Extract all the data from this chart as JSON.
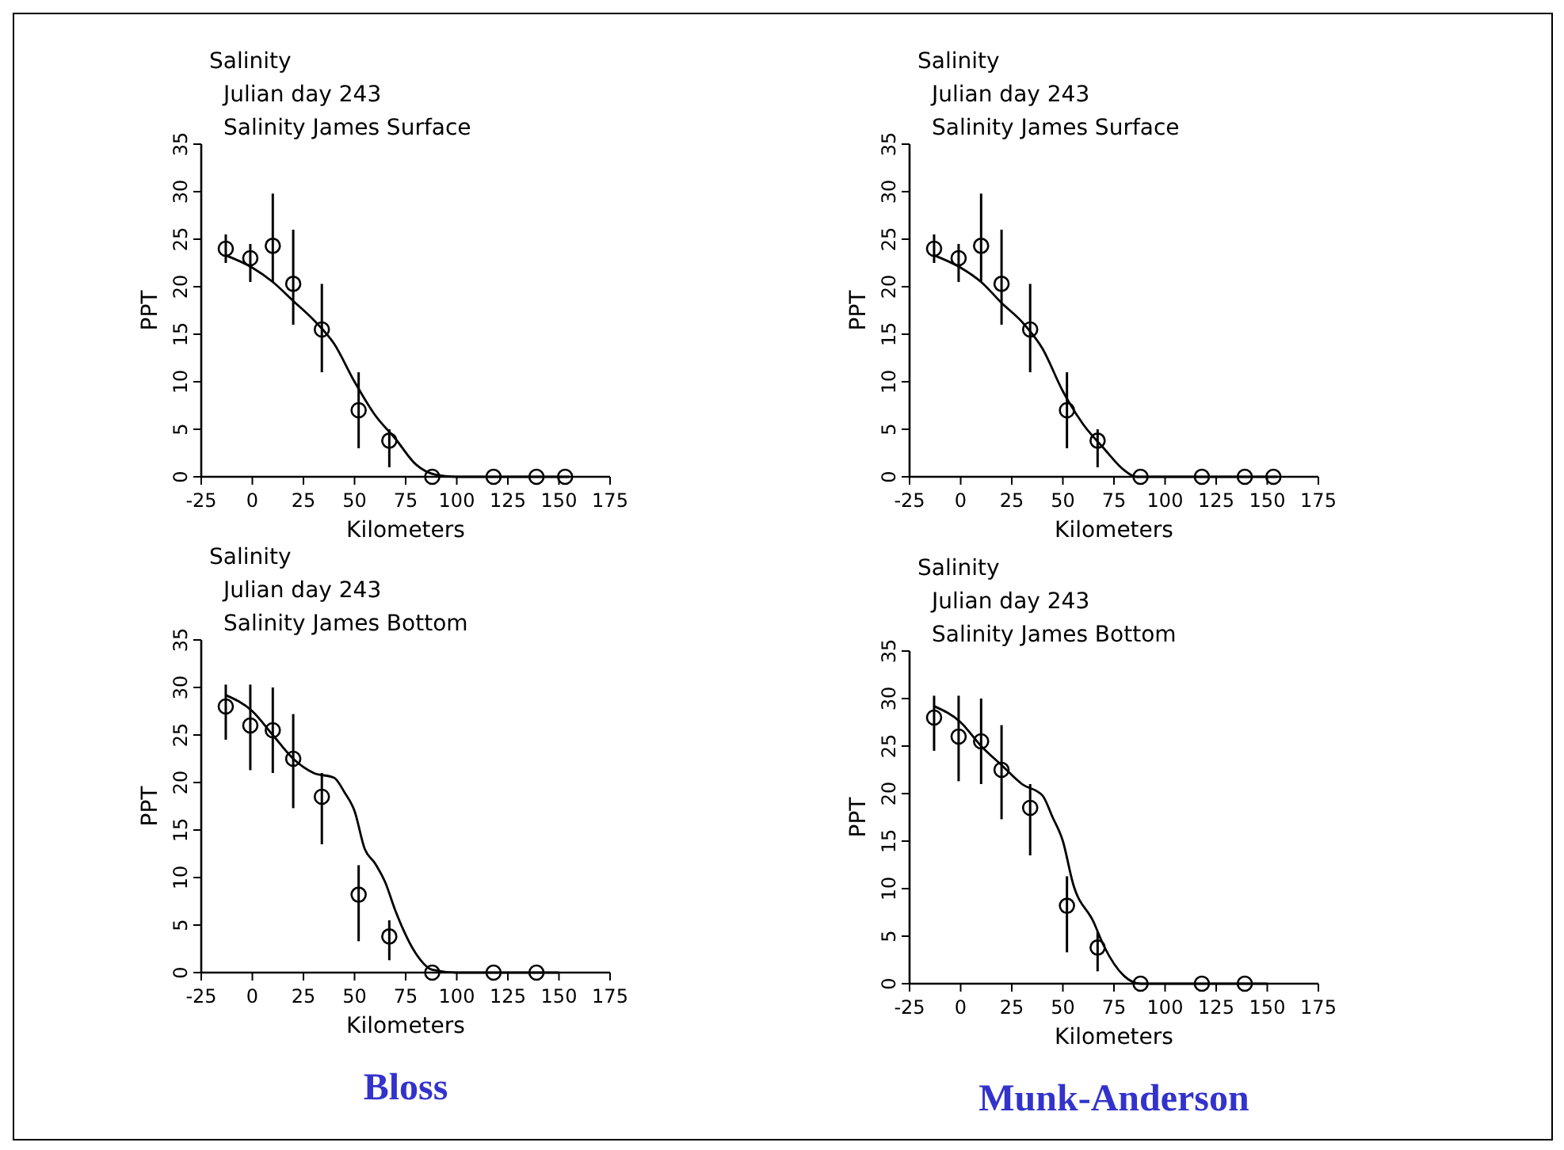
{
  "chart_data": [
    {
      "type": "scatter",
      "title": "Salinity",
      "subtitle": "Julian day  243",
      "annotations": [
        "Salinity James Surface"
      ],
      "xlabel": "Kilometers",
      "ylabel": "PPT",
      "xlim": [
        -25,
        175
      ],
      "ylim": [
        0,
        35
      ],
      "xticks": [
        -25,
        0,
        25,
        50,
        75,
        100,
        125,
        150,
        175
      ],
      "yticks": [
        0,
        5,
        10,
        15,
        20,
        25,
        30,
        35
      ],
      "grid": false,
      "series": [
        {
          "color": "#000000",
          "marker": "circle",
          "x": [
            -13,
            -1,
            10,
            20,
            34,
            52,
            67,
            88,
            118,
            139,
            153
          ],
          "values": [
            24,
            23,
            24.3,
            20.3,
            15.5,
            7,
            3.8,
            0,
            0,
            0,
            0
          ],
          "errors": [
            [
              22.5,
              25.5
            ],
            [
              20.5,
              24.5
            ],
            [
              20.5,
              29.8
            ],
            [
              16,
              26
            ],
            [
              11,
              20.3
            ],
            [
              3,
              11
            ],
            [
              1,
              5
            ],
            null,
            null,
            null,
            null
          ]
        },
        {
          "type": "line",
          "color": "#000000",
          "marker": "none",
          "x": [
            -13,
            0,
            10,
            20,
            30,
            40,
            50,
            60,
            70,
            80,
            90,
            100,
            155
          ],
          "values": [
            23.3,
            22,
            20.5,
            18.5,
            16.5,
            14,
            10,
            6.5,
            4,
            1.3,
            0.2,
            0,
            0
          ]
        }
      ]
    },
    {
      "type": "scatter",
      "title": "Salinity",
      "subtitle": "Julian day  243",
      "annotations": [
        "Salinity James Surface"
      ],
      "xlabel": "Kilometers",
      "ylabel": "PPT",
      "xlim": [
        -25,
        175
      ],
      "ylim": [
        0,
        35
      ],
      "xticks": [
        -25,
        0,
        25,
        50,
        75,
        100,
        125,
        150,
        175
      ],
      "yticks": [
        0,
        5,
        10,
        15,
        20,
        25,
        30,
        35
      ],
      "grid": false,
      "series": [
        {
          "color": "#000000",
          "marker": "circle",
          "x": [
            -13,
            -1,
            10,
            20,
            34,
            52,
            67,
            88,
            118,
            139,
            153
          ],
          "values": [
            24,
            23,
            24.3,
            20.3,
            15.5,
            7,
            3.8,
            0,
            0,
            0,
            0
          ],
          "errors": [
            [
              22.5,
              25.5
            ],
            [
              20.5,
              24.5
            ],
            [
              20.5,
              29.8
            ],
            [
              16,
              26
            ],
            [
              11,
              20.3
            ],
            [
              3,
              11
            ],
            [
              1,
              5
            ],
            null,
            null,
            null,
            null
          ]
        },
        {
          "type": "line",
          "color": "#000000",
          "marker": "none",
          "x": [
            -13,
            0,
            10,
            20,
            30,
            40,
            50,
            60,
            70,
            80,
            86,
            100,
            155
          ],
          "values": [
            23.3,
            22,
            20.5,
            18.3,
            16.3,
            13.5,
            9,
            5.5,
            3,
            0.7,
            0,
            0,
            0
          ]
        }
      ]
    },
    {
      "type": "scatter",
      "title": "Salinity",
      "subtitle": "Julian day  243",
      "annotations": [
        "Salinity James Bottom",
        "Bloss"
      ],
      "xlabel": "Kilometers",
      "ylabel": "PPT",
      "xlim": [
        -25,
        175
      ],
      "ylim": [
        0,
        35
      ],
      "xticks": [
        -25,
        0,
        25,
        50,
        75,
        100,
        125,
        150,
        175
      ],
      "yticks": [
        0,
        5,
        10,
        15,
        20,
        25,
        30,
        35
      ],
      "grid": false,
      "series": [
        {
          "color": "#000000",
          "marker": "circle",
          "x": [
            -13,
            -1,
            10,
            20,
            34,
            52,
            67,
            88,
            118,
            139
          ],
          "values": [
            28,
            26,
            25.5,
            22.5,
            18.5,
            8.2,
            3.8,
            0,
            0,
            0
          ],
          "errors": [
            [
              24.5,
              30.3
            ],
            [
              21.3,
              30.3
            ],
            [
              21,
              30
            ],
            [
              17.3,
              27.2
            ],
            [
              13.5,
              21
            ],
            [
              3.3,
              11.3
            ],
            [
              1.3,
              5.5
            ],
            null,
            null,
            null
          ]
        },
        {
          "type": "line",
          "color": "#000000",
          "marker": "none",
          "x": [
            -13,
            0,
            10,
            20,
            30,
            40,
            45,
            50,
            55,
            60,
            65,
            70,
            80,
            88,
            100,
            150
          ],
          "values": [
            29.2,
            27.5,
            25,
            22.5,
            21,
            20.5,
            19,
            17,
            13,
            11.5,
            9.5,
            6.5,
            2,
            0.3,
            0,
            0
          ]
        }
      ]
    },
    {
      "type": "scatter",
      "title": "Salinity",
      "subtitle": "Julian day  243",
      "annotations": [
        "Salinity James Bottom",
        "Munk-Anderson"
      ],
      "xlabel": "Kilometers",
      "ylabel": "PPT",
      "xlim": [
        -25,
        175
      ],
      "ylim": [
        0,
        35
      ],
      "xticks": [
        -25,
        0,
        25,
        50,
        75,
        100,
        125,
        150,
        175
      ],
      "yticks": [
        0,
        5,
        10,
        15,
        20,
        25,
        30,
        35
      ],
      "grid": false,
      "series": [
        {
          "color": "#000000",
          "marker": "circle",
          "x": [
            -13,
            -1,
            10,
            20,
            34,
            52,
            67,
            88,
            118,
            139
          ],
          "values": [
            28,
            26,
            25.5,
            22.5,
            18.5,
            8.2,
            3.8,
            0,
            0,
            0
          ],
          "errors": [
            [
              24.5,
              30.3
            ],
            [
              21.3,
              30.3
            ],
            [
              21,
              30
            ],
            [
              17.3,
              27.2
            ],
            [
              13.5,
              21
            ],
            [
              3.3,
              11.3
            ],
            [
              1.3,
              5.5
            ],
            null,
            null,
            null
          ]
        },
        {
          "type": "line",
          "color": "#000000",
          "marker": "none",
          "x": [
            -13,
            0,
            10,
            20,
            30,
            40,
            45,
            50,
            55,
            65,
            70,
            80,
            88,
            150
          ],
          "values": [
            29.2,
            27.5,
            25,
            23,
            21,
            19.8,
            17.5,
            15,
            10.5,
            6.5,
            4,
            0.8,
            0,
            0
          ]
        }
      ]
    }
  ]
}
